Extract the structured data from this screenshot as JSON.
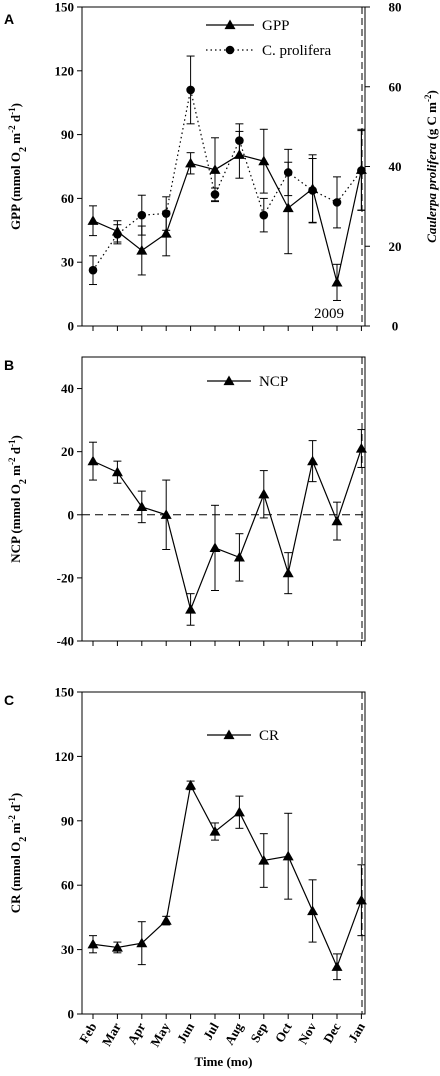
{
  "chart_data": [
    {
      "panel": "A",
      "type": "line",
      "ylabel": "GPP (mmol O2 m-2 d-1)",
      "ylabel_parts": {
        "base": "GPP (mmol O",
        "sub": "2",
        "mid1": " m",
        "sup1": "-2",
        "mid2": " d",
        "sup2": "-1",
        "end": ")"
      },
      "ylim": [
        0,
        150
      ],
      "yticks": [
        "0",
        "30",
        "60",
        "90",
        "120",
        "150"
      ],
      "y2label_parts": {
        "italic": "Caulerpa prolifera",
        "base": " (g C m",
        "sup": "-2",
        "end": ")"
      },
      "y2label": "Caulerpa prolifera (g C m-2)",
      "y2lim": [
        0,
        80
      ],
      "y2ticks": [
        "0",
        "20",
        "40",
        "60",
        "80"
      ],
      "annotation": "2009",
      "legend_position": "top-right",
      "series": [
        {
          "name": "GPP",
          "axis": "left",
          "marker": "triangle",
          "style": "solid",
          "values": [
            49.5,
            44.5,
            35.5,
            43.5,
            76.5,
            73.5,
            80.5,
            77.5,
            55.5,
            64.5,
            20.5,
            73.5
          ],
          "err": [
            7,
            5,
            11.5,
            10.5,
            5,
            15,
            11,
            15,
            21.5,
            16,
            8.5,
            19
          ]
        },
        {
          "name": "C. prolifera",
          "axis": "right",
          "marker": "circle",
          "style": "dotted",
          "values": [
            14,
            23,
            27.8,
            28.2,
            59.2,
            33,
            46.5,
            27.8,
            38.5,
            34,
            31,
            39
          ],
          "err": [
            3.6,
            2.4,
            5,
            4.2,
            8.5,
            1.6,
            4.2,
            4.2,
            5.8,
            8,
            6.4,
            10
          ]
        }
      ]
    },
    {
      "panel": "B",
      "type": "line",
      "ylabel": "NCP (mmol O2 m-2 d-1)",
      "ylabel_parts": {
        "base": "NCP (mmol O",
        "sub": "2",
        "mid1": " m",
        "sup1": "-2",
        "mid2": " d",
        "sup2": "-1",
        "end": ")"
      },
      "ylim": [
        -40,
        50
      ],
      "yticks": [
        "-40",
        "-20",
        "0",
        "20",
        "40"
      ],
      "legend_position": "top-center",
      "series": [
        {
          "name": "NCP",
          "marker": "triangle",
          "style": "solid",
          "values": [
            17,
            13.5,
            2.5,
            0,
            -30,
            -10.5,
            -13.5,
            6.5,
            -18.5,
            17,
            -2,
            21
          ],
          "err": [
            6,
            3.5,
            5,
            11,
            5,
            13.5,
            7.5,
            7.5,
            6.5,
            6.5,
            6,
            6
          ]
        }
      ]
    },
    {
      "panel": "C",
      "type": "line",
      "ylabel": "CR (mmol O2 m-2 d-1)",
      "ylabel_parts": {
        "base": "CR (mmol O",
        "sub": "2",
        "mid1": " m",
        "sup1": "-2",
        "mid2": " d",
        "sup2": "-1",
        "end": ")"
      },
      "ylim": [
        0,
        150
      ],
      "yticks": [
        "0",
        "30",
        "60",
        "90",
        "120",
        "150"
      ],
      "xlabel": "Time (mo)",
      "categories": [
        "Feb",
        "Mar",
        "Apr",
        "May",
        "Jun",
        "Jul",
        "Aug",
        "Sep",
        "Oct",
        "Nov",
        "Dec",
        "Jan"
      ],
      "legend_position": "top-center",
      "series": [
        {
          "name": "CR",
          "marker": "triangle",
          "style": "solid",
          "values": [
            32.5,
            31,
            33,
            43.5,
            106.5,
            85,
            94,
            71.5,
            73.5,
            48,
            22,
            53
          ],
          "err": [
            4,
            2.5,
            10,
            2,
            2,
            4,
            7.5,
            12.5,
            20,
            14.5,
            6,
            16.5
          ]
        }
      ]
    }
  ]
}
